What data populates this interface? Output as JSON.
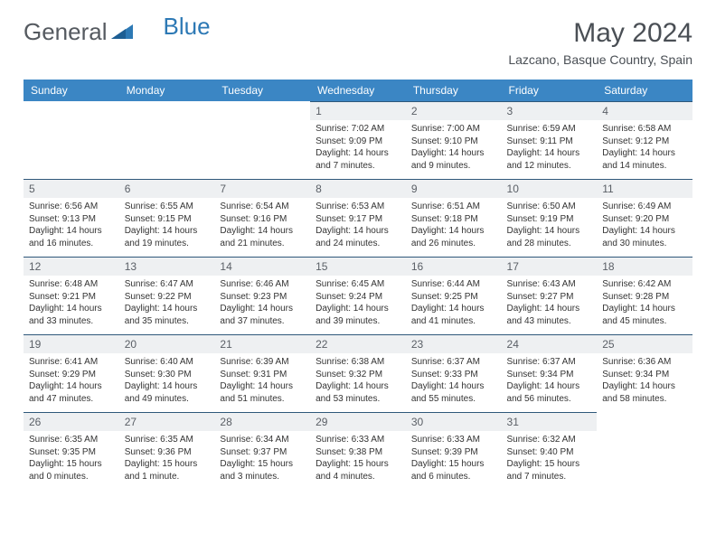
{
  "brand": {
    "word1": "General",
    "word2": "Blue"
  },
  "title": {
    "month": "May 2024",
    "location": "Lazcano, Basque Country, Spain"
  },
  "colors": {
    "header_bg": "#3b86c4",
    "header_text": "#ffffff",
    "daynum_bg": "#eef0f2",
    "day_border": "#2f587a",
    "body_text": "#333333",
    "title_text": "#4a4f55",
    "logo_gray": "#555a60",
    "logo_blue": "#2d79b5"
  },
  "weekdays": [
    "Sunday",
    "Monday",
    "Tuesday",
    "Wednesday",
    "Thursday",
    "Friday",
    "Saturday"
  ],
  "weeks": [
    [
      null,
      null,
      null,
      {
        "n": "1",
        "sunrise": "7:02 AM",
        "sunset": "9:09 PM",
        "daylight": "14 hours and 7 minutes."
      },
      {
        "n": "2",
        "sunrise": "7:00 AM",
        "sunset": "9:10 PM",
        "daylight": "14 hours and 9 minutes."
      },
      {
        "n": "3",
        "sunrise": "6:59 AM",
        "sunset": "9:11 PM",
        "daylight": "14 hours and 12 minutes."
      },
      {
        "n": "4",
        "sunrise": "6:58 AM",
        "sunset": "9:12 PM",
        "daylight": "14 hours and 14 minutes."
      }
    ],
    [
      {
        "n": "5",
        "sunrise": "6:56 AM",
        "sunset": "9:13 PM",
        "daylight": "14 hours and 16 minutes."
      },
      {
        "n": "6",
        "sunrise": "6:55 AM",
        "sunset": "9:15 PM",
        "daylight": "14 hours and 19 minutes."
      },
      {
        "n": "7",
        "sunrise": "6:54 AM",
        "sunset": "9:16 PM",
        "daylight": "14 hours and 21 minutes."
      },
      {
        "n": "8",
        "sunrise": "6:53 AM",
        "sunset": "9:17 PM",
        "daylight": "14 hours and 24 minutes."
      },
      {
        "n": "9",
        "sunrise": "6:51 AM",
        "sunset": "9:18 PM",
        "daylight": "14 hours and 26 minutes."
      },
      {
        "n": "10",
        "sunrise": "6:50 AM",
        "sunset": "9:19 PM",
        "daylight": "14 hours and 28 minutes."
      },
      {
        "n": "11",
        "sunrise": "6:49 AM",
        "sunset": "9:20 PM",
        "daylight": "14 hours and 30 minutes."
      }
    ],
    [
      {
        "n": "12",
        "sunrise": "6:48 AM",
        "sunset": "9:21 PM",
        "daylight": "14 hours and 33 minutes."
      },
      {
        "n": "13",
        "sunrise": "6:47 AM",
        "sunset": "9:22 PM",
        "daylight": "14 hours and 35 minutes."
      },
      {
        "n": "14",
        "sunrise": "6:46 AM",
        "sunset": "9:23 PM",
        "daylight": "14 hours and 37 minutes."
      },
      {
        "n": "15",
        "sunrise": "6:45 AM",
        "sunset": "9:24 PM",
        "daylight": "14 hours and 39 minutes."
      },
      {
        "n": "16",
        "sunrise": "6:44 AM",
        "sunset": "9:25 PM",
        "daylight": "14 hours and 41 minutes."
      },
      {
        "n": "17",
        "sunrise": "6:43 AM",
        "sunset": "9:27 PM",
        "daylight": "14 hours and 43 minutes."
      },
      {
        "n": "18",
        "sunrise": "6:42 AM",
        "sunset": "9:28 PM",
        "daylight": "14 hours and 45 minutes."
      }
    ],
    [
      {
        "n": "19",
        "sunrise": "6:41 AM",
        "sunset": "9:29 PM",
        "daylight": "14 hours and 47 minutes."
      },
      {
        "n": "20",
        "sunrise": "6:40 AM",
        "sunset": "9:30 PM",
        "daylight": "14 hours and 49 minutes."
      },
      {
        "n": "21",
        "sunrise": "6:39 AM",
        "sunset": "9:31 PM",
        "daylight": "14 hours and 51 minutes."
      },
      {
        "n": "22",
        "sunrise": "6:38 AM",
        "sunset": "9:32 PM",
        "daylight": "14 hours and 53 minutes."
      },
      {
        "n": "23",
        "sunrise": "6:37 AM",
        "sunset": "9:33 PM",
        "daylight": "14 hours and 55 minutes."
      },
      {
        "n": "24",
        "sunrise": "6:37 AM",
        "sunset": "9:34 PM",
        "daylight": "14 hours and 56 minutes."
      },
      {
        "n": "25",
        "sunrise": "6:36 AM",
        "sunset": "9:34 PM",
        "daylight": "14 hours and 58 minutes."
      }
    ],
    [
      {
        "n": "26",
        "sunrise": "6:35 AM",
        "sunset": "9:35 PM",
        "daylight": "15 hours and 0 minutes."
      },
      {
        "n": "27",
        "sunrise": "6:35 AM",
        "sunset": "9:36 PM",
        "daylight": "15 hours and 1 minute."
      },
      {
        "n": "28",
        "sunrise": "6:34 AM",
        "sunset": "9:37 PM",
        "daylight": "15 hours and 3 minutes."
      },
      {
        "n": "29",
        "sunrise": "6:33 AM",
        "sunset": "9:38 PM",
        "daylight": "15 hours and 4 minutes."
      },
      {
        "n": "30",
        "sunrise": "6:33 AM",
        "sunset": "9:39 PM",
        "daylight": "15 hours and 6 minutes."
      },
      {
        "n": "31",
        "sunrise": "6:32 AM",
        "sunset": "9:40 PM",
        "daylight": "15 hours and 7 minutes."
      },
      null
    ]
  ],
  "labels": {
    "sunrise": "Sunrise:",
    "sunset": "Sunset:",
    "daylight": "Daylight:"
  }
}
